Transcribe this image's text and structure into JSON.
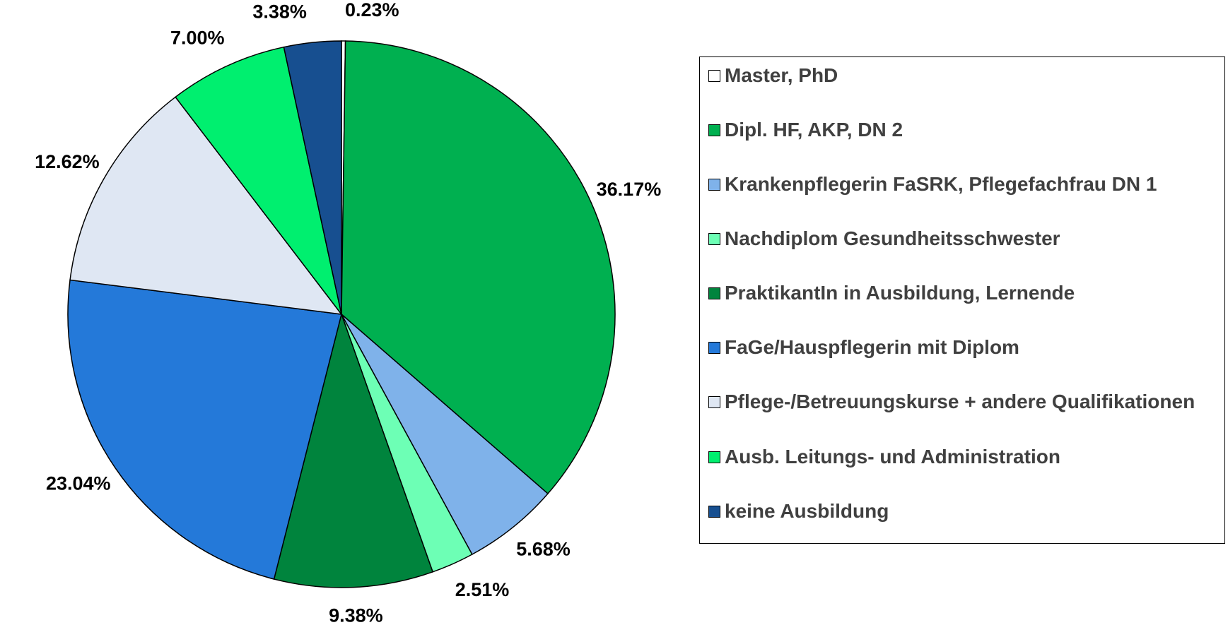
{
  "chart_data": {
    "type": "pie",
    "categories": [
      "Master, PhD",
      "Dipl. HF, AKP, DN 2",
      "Krankenpflegerin FaSRK, Pflegefachfrau DN 1",
      "Nachdiplom Gesundheitsschwester",
      "PraktikantIn in Ausbildung, Lernende",
      "FaGe/Hauspflegerin mit Diplom",
      "Pflege-/Betreuungskurse + andere Qualifikationen",
      "Ausb. Leitungs- und Administration",
      "keine Ausbildung"
    ],
    "values": [
      0.23,
      36.17,
      5.68,
      2.51,
      9.38,
      23.04,
      12.62,
      7.0,
      3.38
    ],
    "value_labels": [
      "0.23%",
      "36.17%",
      "5.68%",
      "2.51%",
      "9.38%",
      "23.04%",
      "12.62%",
      "7.00%",
      "3.38%"
    ],
    "colors": [
      "#ffffff",
      "#00b050",
      "#7fb2ea",
      "#6dffb5",
      "#00843d",
      "#2479d9",
      "#dfe7f3",
      "#00ef6f",
      "#174f90"
    ],
    "legend": "right"
  }
}
